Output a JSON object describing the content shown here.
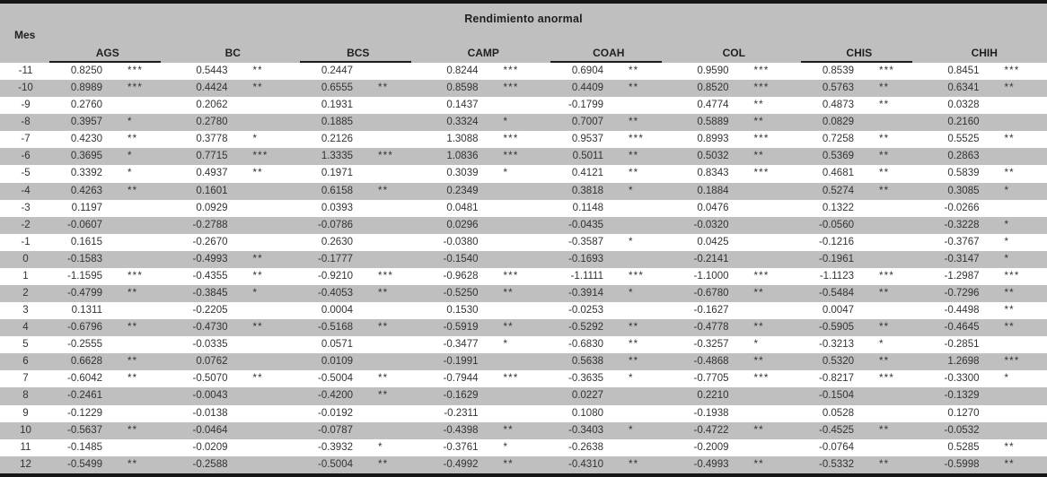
{
  "table": {
    "title": "Rendimiento anormal",
    "row_header_label": "Mes",
    "columns": [
      {
        "label": "AGS",
        "underline": true
      },
      {
        "label": "BC",
        "underline": false
      },
      {
        "label": "BCS",
        "underline": true
      },
      {
        "label": "CAMP",
        "underline": false
      },
      {
        "label": "COAH",
        "underline": true
      },
      {
        "label": "COL",
        "underline": false
      },
      {
        "label": "CHIS",
        "underline": true
      },
      {
        "label": "CHIH",
        "underline": false
      }
    ],
    "rows": [
      {
        "mes": "-11",
        "cells": [
          [
            "0.8250",
            "***"
          ],
          [
            "0.5443",
            "**"
          ],
          [
            "0.2447",
            ""
          ],
          [
            "0.8244",
            "***"
          ],
          [
            "0.6904",
            "**"
          ],
          [
            "0.9590",
            "***"
          ],
          [
            "0.8539",
            "***"
          ],
          [
            "0.8451",
            "***"
          ]
        ]
      },
      {
        "mes": "-10",
        "cells": [
          [
            "0.8989",
            "***"
          ],
          [
            "0.4424",
            "**"
          ],
          [
            "0.6555",
            "**"
          ],
          [
            "0.8598",
            "***"
          ],
          [
            "0.4409",
            "**"
          ],
          [
            "0.8520",
            "***"
          ],
          [
            "0.5763",
            "**"
          ],
          [
            "0.6341",
            "**"
          ]
        ]
      },
      {
        "mes": "-9",
        "cells": [
          [
            "0.2760",
            ""
          ],
          [
            "0.2062",
            ""
          ],
          [
            "0.1931",
            ""
          ],
          [
            "0.1437",
            ""
          ],
          [
            "-0.1799",
            ""
          ],
          [
            "0.4774",
            "**"
          ],
          [
            "0.4873",
            "**"
          ],
          [
            "0.0328",
            ""
          ]
        ]
      },
      {
        "mes": "-8",
        "cells": [
          [
            "0.3957",
            "*"
          ],
          [
            "0.2780",
            ""
          ],
          [
            "0.1885",
            ""
          ],
          [
            "0.3324",
            "*"
          ],
          [
            "0.7007",
            "**"
          ],
          [
            "0.5889",
            "**"
          ],
          [
            "0.0829",
            ""
          ],
          [
            "0.2160",
            ""
          ]
        ]
      },
      {
        "mes": "-7",
        "cells": [
          [
            "0.4230",
            "**"
          ],
          [
            "0.3778",
            "*"
          ],
          [
            "0.2126",
            ""
          ],
          [
            "1.3088",
            "***"
          ],
          [
            "0.9537",
            "***"
          ],
          [
            "0.8993",
            "***"
          ],
          [
            "0.7258",
            "**"
          ],
          [
            "0.5525",
            "**"
          ]
        ]
      },
      {
        "mes": "-6",
        "cells": [
          [
            "0.3695",
            "*"
          ],
          [
            "0.7715",
            "***"
          ],
          [
            "1.3335",
            "***"
          ],
          [
            "1.0836",
            "***"
          ],
          [
            "0.5011",
            "**"
          ],
          [
            "0.5032",
            "**"
          ],
          [
            "0.5369",
            "**"
          ],
          [
            "0.2863",
            ""
          ]
        ]
      },
      {
        "mes": "-5",
        "cells": [
          [
            "0.3392",
            "*"
          ],
          [
            "0.4937",
            "**"
          ],
          [
            "0.1971",
            ""
          ],
          [
            "0.3039",
            "*"
          ],
          [
            "0.4121",
            "**"
          ],
          [
            "0.8343",
            "***"
          ],
          [
            "0.4681",
            "**"
          ],
          [
            "0.5839",
            "**"
          ]
        ]
      },
      {
        "mes": "-4",
        "cells": [
          [
            "0.4263",
            "**"
          ],
          [
            "0.1601",
            ""
          ],
          [
            "0.6158",
            "**"
          ],
          [
            "0.2349",
            ""
          ],
          [
            "0.3818",
            "*"
          ],
          [
            "0.1884",
            ""
          ],
          [
            "0.5274",
            "**"
          ],
          [
            "0.3085",
            "*"
          ]
        ]
      },
      {
        "mes": "-3",
        "cells": [
          [
            "0.1197",
            ""
          ],
          [
            "0.0929",
            ""
          ],
          [
            "0.0393",
            ""
          ],
          [
            "0.0481",
            ""
          ],
          [
            "0.1148",
            ""
          ],
          [
            "0.0476",
            ""
          ],
          [
            "0.1322",
            ""
          ],
          [
            "-0.0266",
            ""
          ]
        ]
      },
      {
        "mes": "-2",
        "cells": [
          [
            "-0.0607",
            ""
          ],
          [
            "-0.2788",
            ""
          ],
          [
            "-0.0786",
            ""
          ],
          [
            "0.0296",
            ""
          ],
          [
            "-0.0435",
            ""
          ],
          [
            "-0.0320",
            ""
          ],
          [
            "-0.0560",
            ""
          ],
          [
            "-0.3228",
            "*"
          ]
        ]
      },
      {
        "mes": "-1",
        "cells": [
          [
            "0.1615",
            ""
          ],
          [
            "-0.2670",
            ""
          ],
          [
            "0.2630",
            ""
          ],
          [
            "-0.0380",
            ""
          ],
          [
            "-0.3587",
            "*"
          ],
          [
            "0.0425",
            ""
          ],
          [
            "-0.1216",
            ""
          ],
          [
            "-0.3767",
            "*"
          ]
        ]
      },
      {
        "mes": "0",
        "cells": [
          [
            "-0.1583",
            ""
          ],
          [
            "-0.4993",
            "**"
          ],
          [
            "-0.1777",
            ""
          ],
          [
            "-0.1540",
            ""
          ],
          [
            "-0.1693",
            ""
          ],
          [
            "-0.2141",
            ""
          ],
          [
            "-0.1961",
            ""
          ],
          [
            "-0.3147",
            "*"
          ]
        ]
      },
      {
        "mes": "1",
        "cells": [
          [
            "-1.1595",
            "***"
          ],
          [
            "-0.4355",
            "**"
          ],
          [
            "-0.9210",
            "***"
          ],
          [
            "-0.9628",
            "***"
          ],
          [
            "-1.1111",
            "***"
          ],
          [
            "-1.1000",
            "***"
          ],
          [
            "-1.1123",
            "***"
          ],
          [
            "-1.2987",
            "***"
          ]
        ]
      },
      {
        "mes": "2",
        "cells": [
          [
            "-0.4799",
            "**"
          ],
          [
            "-0.3845",
            "*"
          ],
          [
            "-0.4053",
            "**"
          ],
          [
            "-0.5250",
            "**"
          ],
          [
            "-0.3914",
            "*"
          ],
          [
            "-0.6780",
            "**"
          ],
          [
            "-0.5484",
            "**"
          ],
          [
            "-0.7296",
            "**"
          ]
        ]
      },
      {
        "mes": "3",
        "cells": [
          [
            "0.1311",
            ""
          ],
          [
            "-0.2205",
            ""
          ],
          [
            "0.0004",
            ""
          ],
          [
            "0.1530",
            ""
          ],
          [
            "-0.0253",
            ""
          ],
          [
            "-0.1627",
            ""
          ],
          [
            "0.0047",
            ""
          ],
          [
            "-0.4498",
            "**"
          ]
        ]
      },
      {
        "mes": "4",
        "cells": [
          [
            "-0.6796",
            "**"
          ],
          [
            "-0.4730",
            "**"
          ],
          [
            "-0.5168",
            "**"
          ],
          [
            "-0.5919",
            "**"
          ],
          [
            "-0.5292",
            "**"
          ],
          [
            "-0.4778",
            "**"
          ],
          [
            "-0.5905",
            "**"
          ],
          [
            "-0.4645",
            "**"
          ]
        ]
      },
      {
        "mes": "5",
        "cells": [
          [
            "-0.2555",
            ""
          ],
          [
            "-0.0335",
            ""
          ],
          [
            "0.0571",
            ""
          ],
          [
            "-0.3477",
            "*"
          ],
          [
            "-0.6830",
            "**"
          ],
          [
            "-0.3257",
            "*"
          ],
          [
            "-0.3213",
            "*"
          ],
          [
            "-0.2851",
            ""
          ]
        ]
      },
      {
        "mes": "6",
        "cells": [
          [
            "0.6628",
            "**"
          ],
          [
            "0.0762",
            ""
          ],
          [
            "0.0109",
            ""
          ],
          [
            "-0.1991",
            ""
          ],
          [
            "0.5638",
            "**"
          ],
          [
            "-0.4868",
            "**"
          ],
          [
            "0.5320",
            "**"
          ],
          [
            "1.2698",
            "***"
          ]
        ]
      },
      {
        "mes": "7",
        "cells": [
          [
            "-0.6042",
            "**"
          ],
          [
            "-0.5070",
            "**"
          ],
          [
            "-0.5004",
            "**"
          ],
          [
            "-0.7944",
            "***"
          ],
          [
            "-0.3635",
            "*"
          ],
          [
            "-0.7705",
            "***"
          ],
          [
            "-0.8217",
            "***"
          ],
          [
            "-0.3300",
            "*"
          ]
        ]
      },
      {
        "mes": "8",
        "cells": [
          [
            "-0.2461",
            ""
          ],
          [
            "-0.0043",
            ""
          ],
          [
            "-0.4200",
            "**"
          ],
          [
            "-0.1629",
            ""
          ],
          [
            "0.0227",
            ""
          ],
          [
            "0.2210",
            ""
          ],
          [
            "-0.1504",
            ""
          ],
          [
            "-0.1329",
            ""
          ]
        ]
      },
      {
        "mes": "9",
        "cells": [
          [
            "-0.1229",
            ""
          ],
          [
            "-0.0138",
            ""
          ],
          [
            "-0.0192",
            ""
          ],
          [
            "-0.2311",
            ""
          ],
          [
            "0.1080",
            ""
          ],
          [
            "-0.1938",
            ""
          ],
          [
            "0.0528",
            ""
          ],
          [
            "0.1270",
            ""
          ]
        ]
      },
      {
        "mes": "10",
        "cells": [
          [
            "-0.5637",
            "**"
          ],
          [
            "-0.0464",
            ""
          ],
          [
            "-0.0787",
            ""
          ],
          [
            "-0.4398",
            "**"
          ],
          [
            "-0.3403",
            "*"
          ],
          [
            "-0.4722",
            "**"
          ],
          [
            "-0.4525",
            "**"
          ],
          [
            "-0.0532",
            ""
          ]
        ]
      },
      {
        "mes": "11",
        "cells": [
          [
            "-0.1485",
            ""
          ],
          [
            "-0.0209",
            ""
          ],
          [
            "-0.3932",
            "*"
          ],
          [
            "-0.3761",
            "*"
          ],
          [
            "-0.2638",
            ""
          ],
          [
            "-0.2009",
            ""
          ],
          [
            "-0.0764",
            ""
          ],
          [
            "0.5285",
            "**"
          ]
        ]
      },
      {
        "mes": "12",
        "cells": [
          [
            "-0.5499",
            "**"
          ],
          [
            "-0.2588",
            ""
          ],
          [
            "-0.5004",
            "**"
          ],
          [
            "-0.4992",
            "**"
          ],
          [
            "-0.4310",
            "**"
          ],
          [
            "-0.4993",
            "**"
          ],
          [
            "-0.5332",
            "**"
          ],
          [
            "-0.5998",
            "**"
          ]
        ]
      }
    ],
    "colors": {
      "header_bg": "#bfbfbf",
      "row_stripe": "#bfbfbf",
      "border": "#161616",
      "text": "#333333"
    }
  }
}
